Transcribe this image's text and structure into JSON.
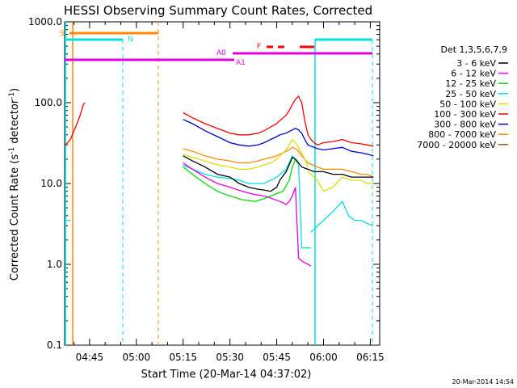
{
  "chart_data": {
    "type": "line",
    "title": "HESSI Observing Summary Count Rates, Corrected",
    "xlabel": "Start Time (20-Mar-14 04:37:02)",
    "ylabel_main": "Corrected Count Rate (s",
    "ylabel_sup1": "-1",
    "ylabel_mid": " detector",
    "ylabel_sup2": "-1",
    "ylabel_end": ")",
    "ylog": true,
    "ylim": [
      0.1,
      1000
    ],
    "xlim_min": [
      277,
      378
    ],
    "x_ticks": [
      {
        "min": 285,
        "label": "04:45"
      },
      {
        "min": 300,
        "label": "05:00"
      },
      {
        "min": 315,
        "label": "05:15"
      },
      {
        "min": 330,
        "label": "05:30"
      },
      {
        "min": 345,
        "label": "05:45"
      },
      {
        "min": 360,
        "label": "06:00"
      },
      {
        "min": 375,
        "label": "06:15"
      }
    ],
    "y_ticks": [
      {
        "v": 1000,
        "label": "1000.0"
      },
      {
        "v": 100,
        "label": "100.0"
      },
      {
        "v": 10,
        "label": "10.0"
      },
      {
        "v": 1,
        "label": "1.0"
      },
      {
        "v": 0.1,
        "label": "0.1"
      }
    ],
    "legend_title": "Det 1,3,5,6,7,9",
    "legend_position": "right",
    "series": [
      {
        "name": "3 - 6 keV",
        "color": "#000000",
        "segments": [
          {
            "x": [
              315,
              318,
              322,
              326,
              330,
              333,
              336,
              339,
              341,
              343,
              345,
              346,
              348,
              349,
              350,
              351,
              352,
              353,
              355,
              357,
              360,
              363,
              366,
              369,
              372,
              374,
              376
            ],
            "y": [
              22,
              19,
              16,
              13,
              12,
              10,
              9,
              8.5,
              8.3,
              8,
              9,
              11,
              14,
              17,
              21,
              20,
              18,
              16,
              15,
              14,
              14,
              13,
              13,
              12,
              12,
              12,
              12
            ]
          }
        ]
      },
      {
        "name": "6 - 12 keV",
        "color": "#e000e0",
        "segments": [
          {
            "x": [
              315,
              318,
              322,
              326,
              330,
              334,
              338,
              341,
              343,
              345,
              347,
              348,
              349,
              350,
              351,
              352,
              353,
              354,
              355,
              356
            ],
            "y": [
              18,
              15,
              12,
              10,
              9,
              8,
              7.3,
              7,
              6.6,
              6.2,
              5.8,
              5.5,
              6,
              7,
              9,
              1.2,
              1.1,
              1.05,
              1.0,
              0.95
            ]
          }
        ]
      },
      {
        "name": "12 - 25 keV",
        "color": "#00dd00",
        "segments": [
          {
            "x": [
              315,
              318,
              322,
              326,
              330,
              334,
              338,
              341,
              343,
              345,
              347,
              349,
              350,
              351,
              352
            ],
            "y": [
              16,
              13,
              10,
              8,
              7,
              6.3,
              6,
              6.5,
              7,
              7.5,
              8,
              11,
              16,
              20,
              18
            ]
          }
        ]
      },
      {
        "name": "25 - 50 keV",
        "color": "#00e0e0",
        "segments": [
          {
            "x": [
              277,
              279
            ],
            "y": [
              3.5,
              3.5
            ]
          },
          {
            "x": [
              315,
              318,
              322,
              326,
              330,
              333,
              336,
              339,
              341,
              343,
              345,
              346,
              348,
              349,
              350,
              351,
              352,
              353,
              354,
              355,
              356
            ],
            "y": [
              17,
              15,
              13,
              12,
              11.5,
              11,
              10,
              10,
              10,
              11,
              12,
              13,
              15,
              18,
              22,
              20,
              17,
              1.6,
              1.6,
              1.6,
              1.6
            ]
          },
          {
            "x": [
              356,
              360,
              363,
              366,
              368,
              370,
              372,
              374,
              376
            ],
            "y": [
              2.5,
              3.5,
              4.5,
              6,
              4,
              3.5,
              3.5,
              3.2,
              3
            ]
          }
        ]
      },
      {
        "name": "50 - 100 keV",
        "color": "#dddd00",
        "segments": [
          {
            "x": [
              315,
              318,
              322,
              326,
              330,
              333,
              336,
              339,
              341,
              343,
              345,
              346,
              348,
              349,
              350,
              351,
              352,
              353,
              354,
              355
            ],
            "y": [
              23,
              21,
              19,
              17,
              16,
              15,
              15,
              16,
              17,
              18,
              20,
              22,
              26,
              30,
              35,
              32,
              28,
              24,
              20,
              16
            ]
          },
          {
            "x": [
              355,
              358,
              360,
              363,
              366,
              369,
              372,
              374,
              376
            ],
            "y": [
              14,
              11,
              8,
              9,
              12,
              11,
              11,
              10,
              10
            ]
          }
        ]
      },
      {
        "name": "100 - 300 keV",
        "color": "#ff0000",
        "segments": [
          {
            "x": [
              277,
              278,
              279,
              280,
              281,
              282,
              283,
              283.5
            ],
            "y": [
              30,
              32,
              36,
              45,
              55,
              70,
              95,
              100
            ]
          },
          {
            "x": [
              315,
              318,
              322,
              326,
              330,
              333,
              336,
              339,
              341,
              343,
              345,
              346,
              348,
              349,
              350,
              351,
              352,
              353,
              354,
              355,
              356,
              357,
              358,
              360,
              363,
              366,
              369,
              372,
              374,
              376
            ],
            "y": [
              75,
              65,
              55,
              48,
              42,
              40,
              40,
              42,
              45,
              50,
              55,
              60,
              70,
              80,
              95,
              110,
              120,
              100,
              60,
              40,
              35,
              32,
              30,
              32,
              33,
              35,
              32,
              31,
              30,
              29
            ]
          }
        ]
      },
      {
        "name": "300 - 800 keV",
        "color": "#0000cc",
        "segments": [
          {
            "x": [
              315,
              318,
              322,
              326,
              330,
              333,
              336,
              339,
              341,
              343,
              345,
              346,
              348,
              349,
              350,
              351,
              352,
              353,
              354,
              355,
              358,
              360,
              363,
              366,
              369,
              372,
              374,
              376
            ],
            "y": [
              62,
              55,
              45,
              38,
              32,
              30,
              29,
              30,
              32,
              35,
              38,
              40,
              42,
              44,
              46,
              48,
              46,
              42,
              35,
              30,
              27,
              26,
              27,
              28,
              25,
              24,
              23,
              22
            ]
          }
        ]
      },
      {
        "name": "800 - 7000 keV",
        "color": "#ff8800",
        "segments": [
          {
            "x": [
              315,
              318,
              322,
              326,
              330,
              333,
              336,
              339,
              341,
              343,
              345,
              346,
              348,
              349,
              350,
              351,
              352,
              353,
              354,
              355,
              358,
              360,
              363,
              366,
              369,
              372,
              374,
              376
            ],
            "y": [
              27,
              25,
              22,
              20,
              19,
              18,
              18,
              19,
              20,
              21,
              22,
              23,
              25,
              26,
              28,
              27,
              25,
              22,
              20,
              18,
              16,
              15,
              15,
              15,
              14,
              13,
              13,
              12
            ]
          }
        ]
      },
      {
        "name": "7000 - 20000 keV",
        "color": "#886600",
        "segments": []
      }
    ],
    "attenuator_annotations": [
      {
        "label": "S",
        "color": "#ff8800"
      },
      {
        "label": "N",
        "color": "#00e0e0"
      },
      {
        "label": "F",
        "color": "#ff0000"
      },
      {
        "label": "A0",
        "color": "#e000e0"
      },
      {
        "label": "A1",
        "color": "#e000e0"
      }
    ],
    "timestamp": "20-Mar-2014 14:54"
  }
}
